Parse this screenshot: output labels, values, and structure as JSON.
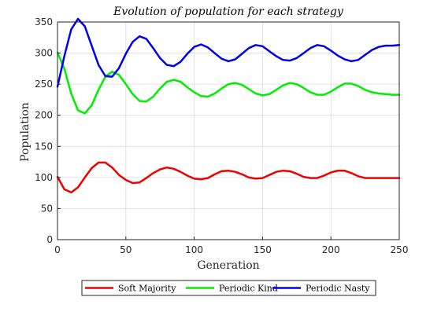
{
  "chart_data": {
    "type": "line",
    "title": "Evolution of population for each strategy",
    "xlabel": "Generation",
    "ylabel": "Population",
    "xlim": [
      0,
      250
    ],
    "ylim": [
      0,
      350
    ],
    "xticks": [
      0,
      50,
      100,
      150,
      200,
      250
    ],
    "yticks": [
      0,
      50,
      100,
      150,
      200,
      250,
      300,
      350
    ],
    "grid": true,
    "legend_position": "bottom-outside",
    "series": [
      {
        "name": "Soft Majority",
        "color": "#ee0000",
        "x": [
          0,
          5,
          10,
          15,
          20,
          25,
          30,
          35,
          40,
          45,
          50,
          55,
          60,
          65,
          70,
          75,
          80,
          85,
          90,
          95,
          100,
          105,
          110,
          115,
          120,
          125,
          130,
          135,
          140,
          145,
          150,
          155,
          160,
          165,
          170,
          175,
          180,
          185,
          190,
          195,
          200,
          205,
          210,
          215,
          220,
          225,
          230,
          235,
          240,
          245,
          250
        ],
        "y": [
          101,
          81,
          76,
          84,
          100,
          115,
          124,
          124,
          116,
          104,
          96,
          91,
          92,
          99,
          107,
          113,
          116,
          114,
          109,
          103,
          98,
          97,
          99,
          105,
          110,
          111,
          109,
          105,
          100,
          98,
          99,
          104,
          109,
          111,
          110,
          106,
          101,
          99,
          99,
          103,
          108,
          111,
          111,
          107,
          102,
          99,
          99,
          99,
          99,
          99,
          99
        ]
      },
      {
        "name": "Periodic Kind",
        "color": "#00ee00",
        "x": [
          0,
          5,
          10,
          15,
          20,
          25,
          30,
          35,
          40,
          45,
          50,
          55,
          60,
          65,
          70,
          75,
          80,
          85,
          90,
          95,
          100,
          105,
          110,
          115,
          120,
          125,
          130,
          135,
          140,
          145,
          150,
          155,
          160,
          165,
          170,
          175,
          180,
          185,
          190,
          195,
          200,
          205,
          210,
          215,
          220,
          225,
          230,
          235,
          240,
          245,
          250
        ],
        "y": [
          301,
          275,
          235,
          208,
          203,
          216,
          241,
          262,
          270,
          265,
          250,
          234,
          223,
          222,
          230,
          243,
          254,
          257,
          254,
          245,
          237,
          231,
          230,
          235,
          243,
          250,
          252,
          249,
          242,
          235,
          232,
          234,
          241,
          248,
          252,
          250,
          244,
          237,
          233,
          233,
          238,
          245,
          251,
          251,
          247,
          241,
          237,
          235,
          234,
          233,
          233
        ]
      },
      {
        "name": "Periodic Nasty",
        "color": "#0000ee",
        "x": [
          0,
          5,
          10,
          15,
          20,
          25,
          30,
          35,
          40,
          45,
          50,
          55,
          60,
          65,
          70,
          75,
          80,
          85,
          90,
          95,
          100,
          105,
          110,
          115,
          120,
          125,
          130,
          135,
          140,
          145,
          150,
          155,
          160,
          165,
          170,
          175,
          180,
          185,
          190,
          195,
          200,
          205,
          210,
          215,
          220,
          225,
          230,
          235,
          240,
          245,
          250
        ],
        "y": [
          246,
          295,
          338,
          355,
          343,
          312,
          281,
          263,
          262,
          276,
          299,
          318,
          327,
          323,
          308,
          292,
          281,
          279,
          286,
          299,
          310,
          314,
          309,
          300,
          291,
          287,
          290,
          299,
          308,
          313,
          311,
          303,
          295,
          289,
          288,
          292,
          300,
          308,
          313,
          311,
          304,
          296,
          290,
          287,
          289,
          297,
          305,
          310,
          312,
          312,
          313
        ]
      }
    ]
  }
}
